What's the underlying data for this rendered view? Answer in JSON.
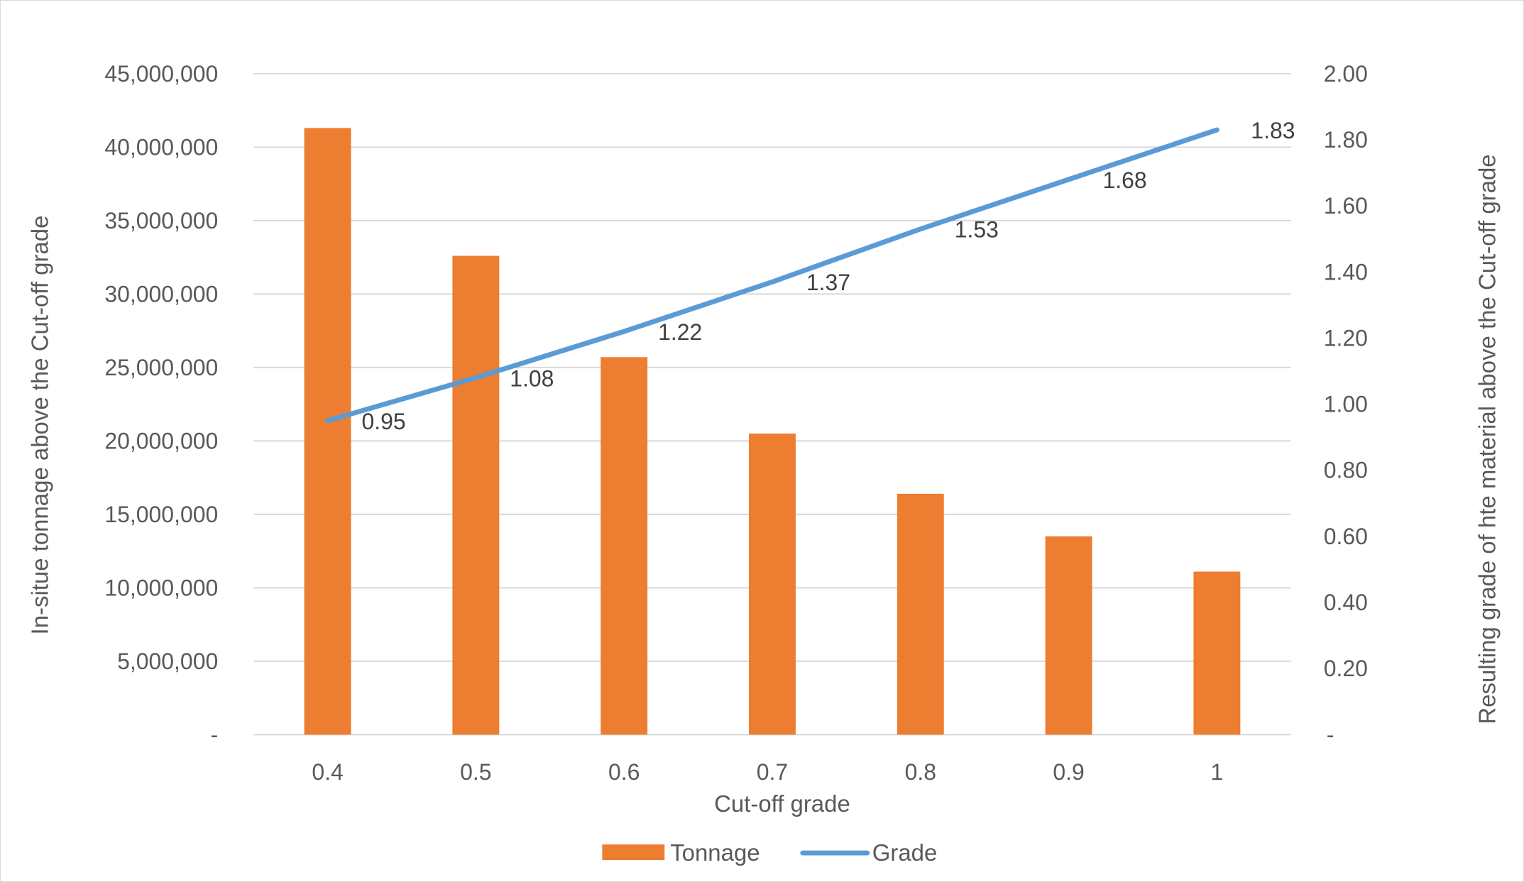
{
  "chart_data": {
    "type": "bar+line",
    "categories": [
      "0.4",
      "0.5",
      "0.6",
      "0.7",
      "0.8",
      "0.9",
      "1"
    ],
    "series": [
      {
        "name": "Tonnage",
        "type": "bar",
        "axis": "left",
        "color": "#ED7D31",
        "values": [
          41300000,
          32600000,
          25700000,
          20500000,
          16400000,
          13500000,
          11100000
        ]
      },
      {
        "name": "Grade",
        "type": "line",
        "axis": "right",
        "color": "#5B9BD5",
        "values": [
          0.95,
          1.08,
          1.22,
          1.37,
          1.53,
          1.68,
          1.83
        ],
        "data_labels": [
          "0.95",
          "1.08",
          "1.22",
          "1.37",
          "1.53",
          "1.68",
          "1.83"
        ]
      }
    ],
    "xlabel": "Cut-off grade",
    "ylabel": "In-situe tonnage above the Cut-off grade",
    "y2label": "Resulting grade of hte material above the Cut-off grade",
    "ylim": [
      0,
      45000000
    ],
    "y2lim": [
      0,
      2
    ],
    "y_ticks": [
      "-",
      "5,000,000",
      "10,000,000",
      "15,000,000",
      "20,000,000",
      "25,000,000",
      "30,000,000",
      "35,000,000",
      "40,000,000",
      "45,000,000"
    ],
    "y2_ticks": [
      "-",
      "0.20",
      "0.40",
      "0.60",
      "0.80",
      "1.00",
      "1.20",
      "1.40",
      "1.60",
      "1.80",
      "2.00"
    ],
    "grid": true,
    "legend": "bottom"
  }
}
